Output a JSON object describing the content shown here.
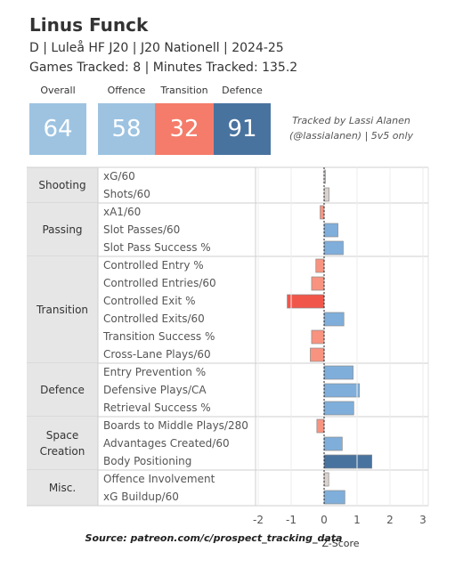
{
  "header": {
    "player_name": "Linus Funck",
    "info": "D | Luleå HF J20 | J20 Nationell | 2024-25",
    "tracked": "Games Tracked: 8 | Minutes Tracked: 135.2",
    "credit_line1": "Tracked by Lassi Alanen",
    "credit_line2": "(@lassialanen) | 5v5 only"
  },
  "scores": [
    {
      "label": "Overall",
      "value": "64",
      "color": "#9dc3e1"
    },
    {
      "label": "Offence",
      "value": "58",
      "color": "#9dc3e1"
    },
    {
      "label": "Transition",
      "value": "32",
      "color": "#f57c6a"
    },
    {
      "label": "Defence",
      "value": "91",
      "color": "#49739f"
    }
  ],
  "chart_data": {
    "type": "bar",
    "orientation": "horizontal",
    "xlabel": "Z-Score",
    "xlim": [
      -2,
      3
    ],
    "xticks": [
      "-2",
      "-1",
      "0",
      "1",
      "2",
      "3"
    ],
    "groups": [
      {
        "name": "Shooting",
        "metrics": [
          {
            "label": "xG/60",
            "value": 0.04
          },
          {
            "label": "Shots/60",
            "value": 0.15
          }
        ]
      },
      {
        "name": "Passing",
        "metrics": [
          {
            "label": "xA1/60",
            "value": -0.12
          },
          {
            "label": "Slot Passes/60",
            "value": 0.42
          },
          {
            "label": "Slot Pass Success %",
            "value": 0.58
          }
        ]
      },
      {
        "name": "Transition",
        "metrics": [
          {
            "label": "Controlled Entry %",
            "value": -0.25
          },
          {
            "label": "Controlled Entries/60",
            "value": -0.38
          },
          {
            "label": "Controlled Exit %",
            "value": -1.12
          },
          {
            "label": "Controlled Exits/60",
            "value": 0.6
          },
          {
            "label": "Transition Success %",
            "value": -0.38
          },
          {
            "label": "Cross-Lane Plays/60",
            "value": -0.42
          }
        ]
      },
      {
        "name": "Defence",
        "metrics": [
          {
            "label": "Entry Prevention %",
            "value": 0.88
          },
          {
            "label": "Defensive Plays/CA",
            "value": 1.07
          },
          {
            "label": "Retrieval Success %",
            "value": 0.9
          }
        ]
      },
      {
        "name": "Space Creation",
        "name_lines": [
          "Space",
          "Creation"
        ],
        "metrics": [
          {
            "label": "Boards to Middle Plays/280",
            "value": -0.22
          },
          {
            "label": "Advantages Created/60",
            "value": 0.55
          },
          {
            "label": "Body Positioning",
            "value": 1.45
          }
        ]
      },
      {
        "name": "Misc.",
        "metrics": [
          {
            "label": "Offence Involvement",
            "value": 0.14
          },
          {
            "label": "xG Buildup/60",
            "value": 0.63
          }
        ]
      }
    ]
  },
  "source": "Source: patreon.com/c/prospect_tracking_data"
}
